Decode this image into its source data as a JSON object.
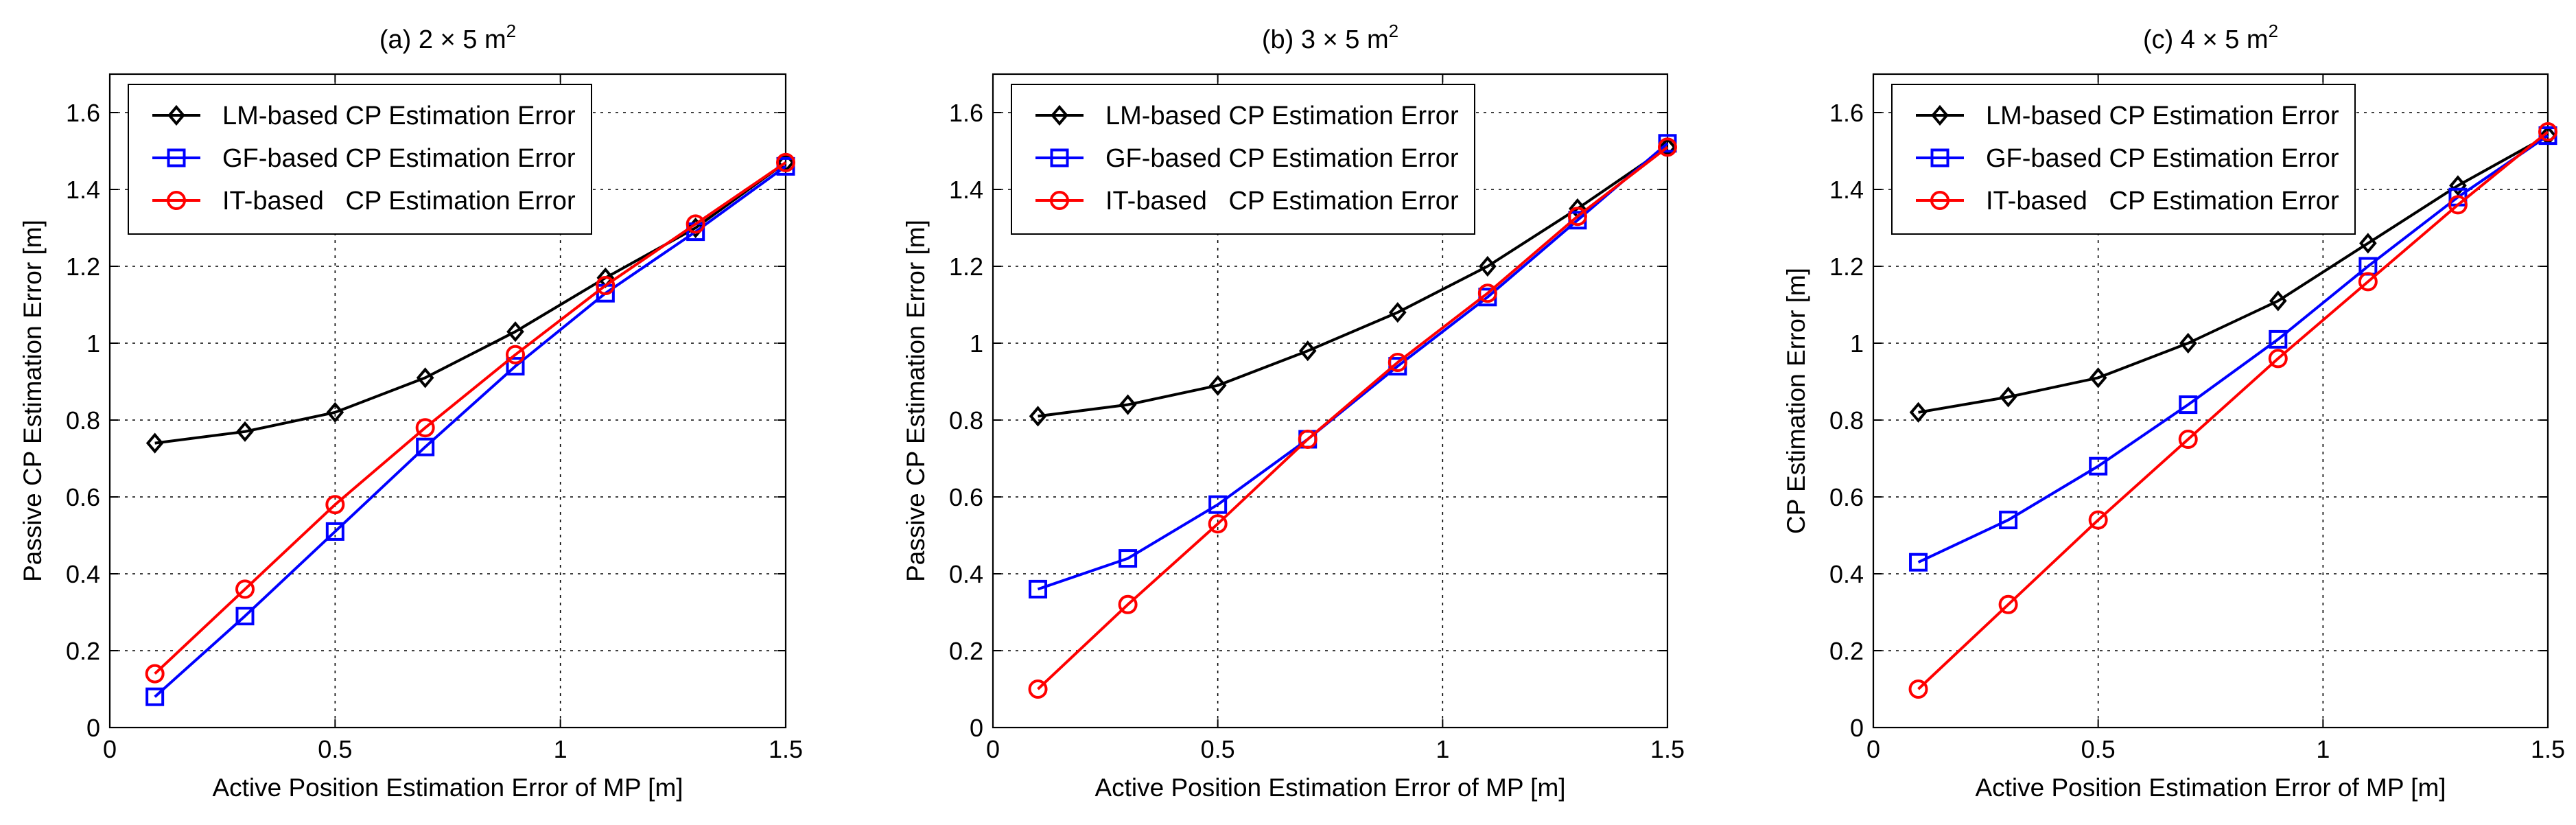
{
  "chart_data": [
    {
      "type": "line",
      "title": {
        "prefix": "(a) 2 × 5 m",
        "superscript": "2"
      },
      "xlabel": "Active Position Estimation Error of MP [m]",
      "ylabel": "Passive CP Estimation Error [m]",
      "xlim": [
        0,
        1.5
      ],
      "ylim": [
        0,
        1.7
      ],
      "xticks": [
        0,
        0.5,
        1,
        1.5
      ],
      "xtick_labels": [
        "0",
        "0.5",
        "1",
        "1.5"
      ],
      "yticks": [
        0,
        0.2,
        0.4,
        0.6,
        0.8,
        1,
        1.2,
        1.4,
        1.6
      ],
      "ytick_labels": [
        "0",
        "0.2",
        "0.4",
        "0.6",
        "0.8",
        "1",
        "1.2",
        "1.4",
        "1.6"
      ],
      "grid": true,
      "legend_position": "top-left",
      "x": [
        0.1,
        0.3,
        0.5,
        0.7,
        0.9,
        1.1,
        1.3,
        1.5
      ],
      "series": [
        {
          "name": "LM-based CP Estimation Error",
          "color": "#000000",
          "marker": "diamond",
          "values": [
            0.74,
            0.77,
            0.82,
            0.91,
            1.03,
            1.17,
            1.3,
            1.47
          ]
        },
        {
          "name": "GF-based CP Estimation Error",
          "color": "#0000ff",
          "marker": "square",
          "values": [
            0.08,
            0.29,
            0.51,
            0.73,
            0.94,
            1.13,
            1.29,
            1.46
          ]
        },
        {
          "name": "IT-based   CP Estimation Error",
          "color": "#ff0000",
          "marker": "circle",
          "values": [
            0.14,
            0.36,
            0.58,
            0.78,
            0.97,
            1.15,
            1.31,
            1.47
          ]
        }
      ]
    },
    {
      "type": "line",
      "title": {
        "prefix": "(b) 3 × 5 m",
        "superscript": "2"
      },
      "xlabel": "Active Position Estimation Error of MP [m]",
      "ylabel": "Passive CP Estimation Error [m]",
      "xlim": [
        0,
        1.5
      ],
      "ylim": [
        0,
        1.7
      ],
      "xticks": [
        0,
        0.5,
        1,
        1.5
      ],
      "xtick_labels": [
        "0",
        "0.5",
        "1",
        "1.5"
      ],
      "yticks": [
        0,
        0.2,
        0.4,
        0.6,
        0.8,
        1,
        1.2,
        1.4,
        1.6
      ],
      "ytick_labels": [
        "0",
        "0.2",
        "0.4",
        "0.6",
        "0.8",
        "1",
        "1.2",
        "1.4",
        "1.6"
      ],
      "grid": true,
      "legend_position": "top-left",
      "x": [
        0.1,
        0.3,
        0.5,
        0.7,
        0.9,
        1.1,
        1.3,
        1.5
      ],
      "series": [
        {
          "name": "LM-based CP Estimation Error",
          "color": "#000000",
          "marker": "diamond",
          "values": [
            0.81,
            0.84,
            0.89,
            0.98,
            1.08,
            1.2,
            1.35,
            1.51
          ]
        },
        {
          "name": "GF-based CP Estimation Error",
          "color": "#0000ff",
          "marker": "square",
          "values": [
            0.36,
            0.44,
            0.58,
            0.75,
            0.94,
            1.12,
            1.32,
            1.52
          ]
        },
        {
          "name": "IT-based   CP Estimation Error",
          "color": "#ff0000",
          "marker": "circle",
          "values": [
            0.1,
            0.32,
            0.53,
            0.75,
            0.95,
            1.13,
            1.33,
            1.51
          ]
        }
      ]
    },
    {
      "type": "line",
      "title": {
        "prefix": "(c) 4 × 5 m",
        "superscript": "2"
      },
      "xlabel": "Active Position Estimation Error of MP [m]",
      "ylabel": "CP Estimation Error [m]",
      "xlim": [
        0,
        1.5
      ],
      "ylim": [
        0,
        1.7
      ],
      "xticks": [
        0,
        0.5,
        1,
        1.5
      ],
      "xtick_labels": [
        "0",
        "0.5",
        "1",
        "1.5"
      ],
      "yticks": [
        0,
        0.2,
        0.4,
        0.6,
        0.8,
        1,
        1.2,
        1.4,
        1.6
      ],
      "ytick_labels": [
        "0",
        "0.2",
        "0.4",
        "0.6",
        "0.8",
        "1",
        "1.2",
        "1.4",
        "1.6"
      ],
      "grid": true,
      "legend_position": "top-left",
      "x": [
        0.1,
        0.3,
        0.5,
        0.7,
        0.9,
        1.1,
        1.3,
        1.5
      ],
      "series": [
        {
          "name": "LM-based CP Estimation Error",
          "color": "#000000",
          "marker": "diamond",
          "values": [
            0.82,
            0.86,
            0.91,
            1.0,
            1.11,
            1.26,
            1.41,
            1.54
          ]
        },
        {
          "name": "GF-based CP Estimation Error",
          "color": "#0000ff",
          "marker": "square",
          "values": [
            0.43,
            0.54,
            0.68,
            0.84,
            1.01,
            1.2,
            1.38,
            1.54
          ]
        },
        {
          "name": "IT-based   CP Estimation Error",
          "color": "#ff0000",
          "marker": "circle",
          "values": [
            0.1,
            0.32,
            0.54,
            0.75,
            0.96,
            1.16,
            1.36,
            1.55
          ]
        }
      ]
    }
  ]
}
